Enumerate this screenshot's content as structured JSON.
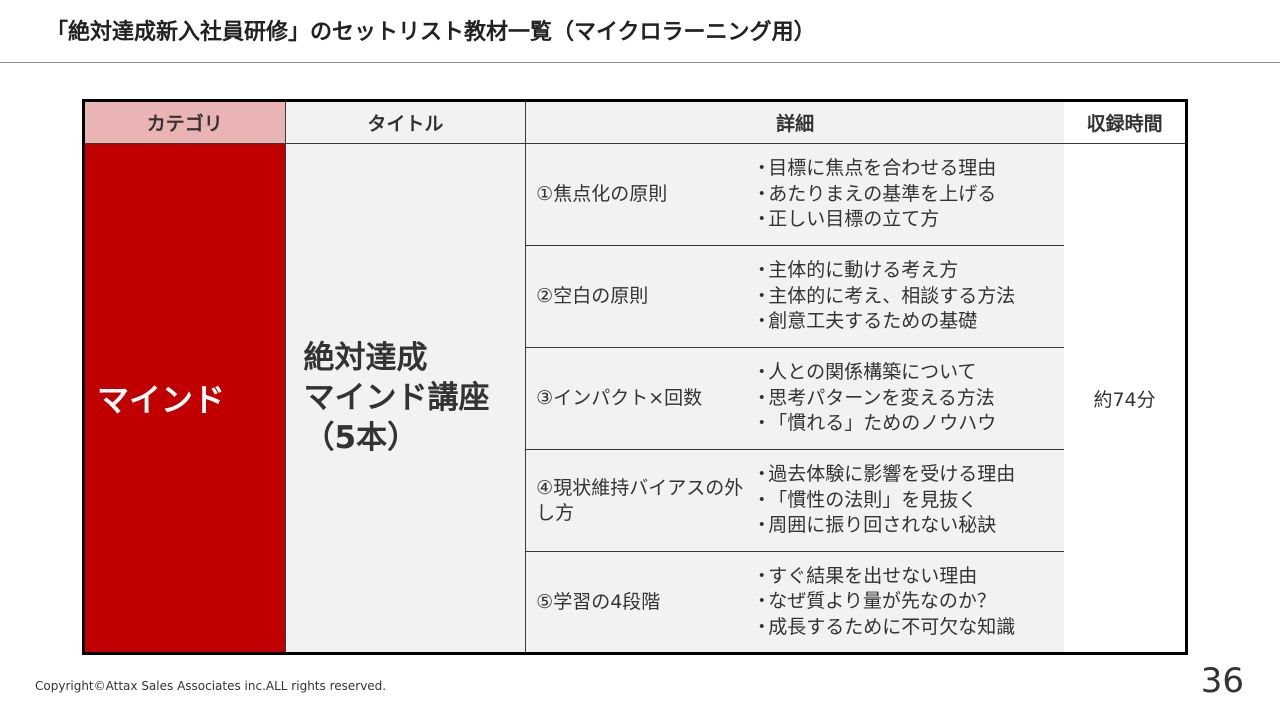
{
  "page_title": "「絶対達成新入社員研修」のセットリスト教材一覧（マイクロラーニング用）",
  "table": {
    "headers": {
      "category": "カテゴリ",
      "title": "タイトル",
      "detail": "詳細",
      "duration": "収録時間"
    },
    "category": "マインド",
    "course_title_lines": [
      "絶対達成",
      "マインド講座",
      "（5本）"
    ],
    "duration": "約74分",
    "bullet_glyph": "・",
    "lessons": [
      {
        "title": "①焦点化の原則",
        "points": [
          "目標に焦点を合わせる理由",
          "あたりまえの基準を上げる",
          "正しい目標の立て方"
        ]
      },
      {
        "title": "②空白の原則",
        "points": [
          "主体的に動ける考え方",
          "主体的に考え、相談する方法",
          "創意工夫するための基礎"
        ]
      },
      {
        "title": "③インパクト×回数",
        "points": [
          "人との関係構築について",
          "思考パターンを変える方法",
          "「慣れる」ためのノウハウ"
        ]
      },
      {
        "title": "④現状維持バイアスの外し方",
        "points": [
          "過去体験に影響を受ける理由",
          "「慣性の法則」を見抜く",
          "周囲に振り回されない秘訣"
        ]
      },
      {
        "title": "⑤学習の4段階",
        "points": [
          "すぐ結果を出せない理由",
          "なぜ質より量が先なのか？",
          "成長するために不可欠な知識"
        ]
      }
    ]
  },
  "footer": {
    "copyright": "Copyright©Attax Sales Associates inc.ALL rights reserved.",
    "page_number": "36"
  },
  "colors": {
    "category_fill": "#c00000",
    "category_header_fill": "#ebb4b4",
    "cell_fill": "#f2f2f2"
  }
}
